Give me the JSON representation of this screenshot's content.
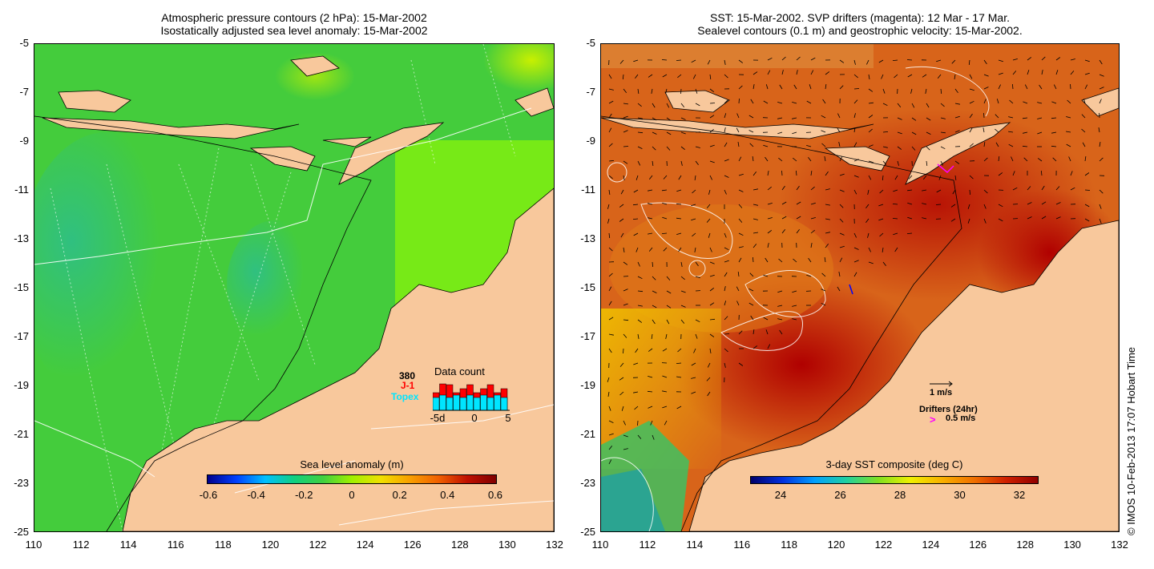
{
  "left_panel": {
    "title_line1": "Atmospheric pressure contours (2 hPa): 15-Mar-2002",
    "title_line2": "Isostatically adjusted sea level anomaly: 15-Mar-2002",
    "colorbar_label": "Sea level anomaly (m)",
    "colorbar_ticks": [
      "-0.6",
      "-0.4",
      "-0.2",
      "0",
      "0.2",
      "0.4",
      "0.6"
    ],
    "inset": {
      "title": "Data count",
      "count": "380",
      "mission1": "J-1",
      "mission2": "Topex",
      "x_ticks": [
        "-5d",
        "0",
        "5"
      ],
      "mission1_color": "#ff0000",
      "mission2_color": "#00e5ff"
    }
  },
  "right_panel": {
    "title_line1": "SST: 15-Mar-2002. SVP drifters (magenta): 12 Mar - 17 Mar.",
    "title_line2": "Sealevel contours (0.1 m) and geostrophic velocity: 15-Mar-2002.",
    "colorbar_label": "3-day SST composite (deg C)",
    "colorbar_ticks": [
      "24",
      "26",
      "28",
      "30",
      "32"
    ],
    "velocity_scale_label": "1 m/s",
    "drifters_label": "Drifters (24hr)",
    "drifters_scale_label": "0.5 m/s",
    "drifter_color": "#ff00ff"
  },
  "axes": {
    "y_ticks": [
      "-5",
      "-7",
      "-9",
      "-11",
      "-13",
      "-15",
      "-17",
      "-19",
      "-21",
      "-23",
      "-25"
    ],
    "x_ticks": [
      "110",
      "112",
      "114",
      "116",
      "118",
      "120",
      "122",
      "124",
      "126",
      "128",
      "130",
      "132"
    ]
  },
  "copyright": "© IMOS 10-Feb-2013 17:07 Hobart Time",
  "colors": {
    "land": "#f8c89c",
    "sla_green": "#40d040",
    "sst_red": "#c02800"
  }
}
